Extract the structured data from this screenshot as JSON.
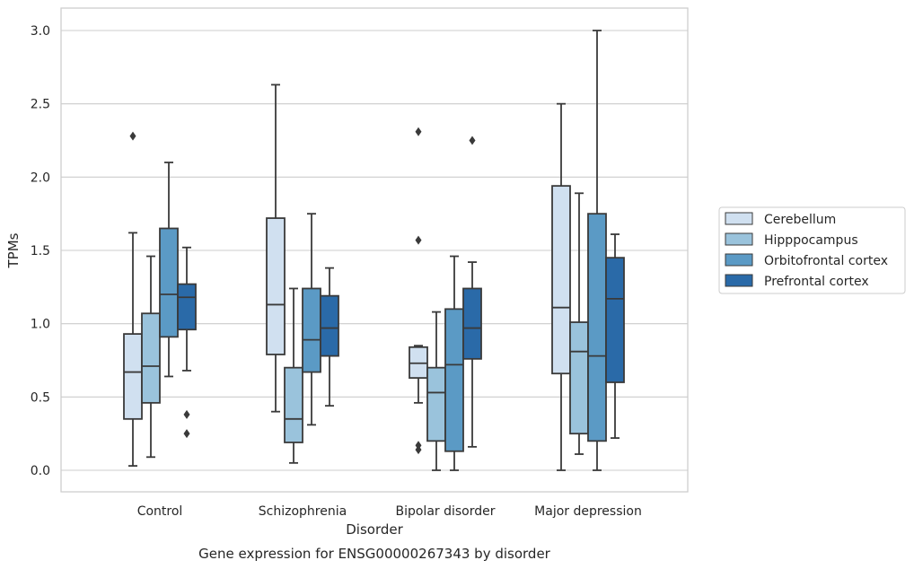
{
  "chart_data": {
    "type": "box",
    "title": "",
    "caption": "Gene expression for ENSG00000267343 by disorder",
    "xlabel": "Disorder",
    "ylabel": "TPMs",
    "ylim": [
      -0.15,
      3.15
    ],
    "yticks": [
      0.0,
      0.5,
      1.0,
      1.5,
      2.0,
      2.5,
      3.0
    ],
    "ytick_labels": [
      "0.0",
      "0.5",
      "1.0",
      "1.5",
      "2.0",
      "2.5",
      "3.0"
    ],
    "grid": "horizontal",
    "legend_position": "right",
    "categories": [
      "Control",
      "Schizophrenia",
      "Bipolar disorder",
      "Major depression"
    ],
    "series": [
      {
        "name": "Cerebellum",
        "color": "#d0e0f0",
        "boxes": [
          {
            "whislo": 0.03,
            "q1": 0.35,
            "med": 0.67,
            "q3": 0.93,
            "whishi": 1.62,
            "fliers": [
              2.28
            ]
          },
          {
            "whislo": 0.4,
            "q1": 0.79,
            "med": 1.13,
            "q3": 1.72,
            "whishi": 2.63,
            "fliers": []
          },
          {
            "whislo": 0.46,
            "q1": 0.63,
            "med": 0.73,
            "q3": 0.84,
            "whishi": 0.85,
            "fliers": [
              2.31,
              1.57,
              0.17,
              0.14
            ]
          },
          {
            "whislo": 0.0,
            "q1": 0.66,
            "med": 1.11,
            "q3": 1.94,
            "whishi": 2.5,
            "fliers": []
          }
        ]
      },
      {
        "name": "Hipppocampus",
        "color": "#9ac3dc",
        "boxes": [
          {
            "whislo": 0.09,
            "q1": 0.46,
            "med": 0.71,
            "q3": 1.07,
            "whishi": 1.46,
            "fliers": []
          },
          {
            "whislo": 0.05,
            "q1": 0.19,
            "med": 0.35,
            "q3": 0.7,
            "whishi": 1.24,
            "fliers": []
          },
          {
            "whislo": 0.0,
            "q1": 0.2,
            "med": 0.53,
            "q3": 0.7,
            "whishi": 1.08,
            "fliers": []
          },
          {
            "whislo": 0.11,
            "q1": 0.25,
            "med": 0.81,
            "q3": 1.01,
            "whishi": 1.89,
            "fliers": []
          }
        ]
      },
      {
        "name": "Orbitofrontal cortex",
        "color": "#5b9ac5",
        "boxes": [
          {
            "whislo": 0.64,
            "q1": 0.91,
            "med": 1.2,
            "q3": 1.65,
            "whishi": 2.1,
            "fliers": []
          },
          {
            "whislo": 0.31,
            "q1": 0.67,
            "med": 0.89,
            "q3": 1.24,
            "whishi": 1.75,
            "fliers": []
          },
          {
            "whislo": 0.0,
            "q1": 0.13,
            "med": 0.72,
            "q3": 1.1,
            "whishi": 1.46,
            "fliers": []
          },
          {
            "whislo": 0.0,
            "q1": 0.2,
            "med": 0.78,
            "q3": 1.75,
            "whishi": 3.0,
            "fliers": []
          }
        ]
      },
      {
        "name": "Prefrontal cortex",
        "color": "#2a6aa8",
        "boxes": [
          {
            "whislo": 0.68,
            "q1": 0.96,
            "med": 1.18,
            "q3": 1.27,
            "whishi": 1.52,
            "fliers": [
              0.38,
              0.25
            ]
          },
          {
            "whislo": 0.44,
            "q1": 0.78,
            "med": 0.97,
            "q3": 1.19,
            "whishi": 1.38,
            "fliers": []
          },
          {
            "whislo": 0.16,
            "q1": 0.76,
            "med": 0.97,
            "q3": 1.24,
            "whishi": 1.42,
            "fliers": [
              2.25
            ]
          },
          {
            "whislo": 0.22,
            "q1": 0.6,
            "med": 1.17,
            "q3": 1.45,
            "whishi": 1.61,
            "fliers": []
          }
        ]
      }
    ]
  }
}
